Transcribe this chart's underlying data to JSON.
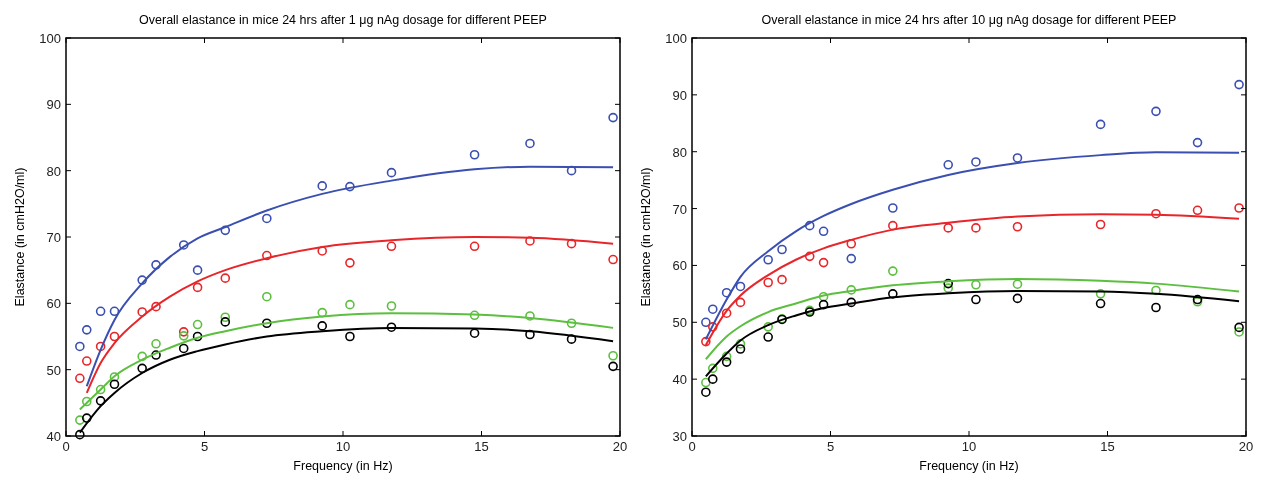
{
  "chart_data": [
    {
      "type": "scatter",
      "title": "Overall elastance in mice 24 hrs after 1 μg nAg dosage for different PEEP",
      "xlabel": "Frequency (in Hz)",
      "ylabel": "Elastance (in cmH2O/ml)",
      "xlim": [
        0,
        20
      ],
      "xticks": [
        0,
        5,
        10,
        15,
        20
      ],
      "ylim": [
        40,
        100
      ],
      "yticks": [
        40,
        50,
        60,
        70,
        80,
        90,
        100
      ],
      "grid": false,
      "series": [
        {
          "marker": "circle",
          "color": "#3a4fb0",
          "x": [
            0.5,
            0.75,
            1.25,
            1.75,
            2.75,
            3.25,
            4.25,
            4.75,
            5.75,
            7.25,
            9.25,
            10.25,
            11.75,
            14.75,
            16.75,
            18.25,
            19.75
          ],
          "values": [
            53.5,
            56,
            58.8,
            58.8,
            63.5,
            65.8,
            68.8,
            65,
            71,
            72.8,
            77.7,
            77.6,
            79.7,
            82.4,
            84.1,
            80,
            88
          ]
        },
        {
          "type": "scatter",
          "marker": "circle",
          "color": "#e8262a",
          "x": [
            0.5,
            0.75,
            1.25,
            1.75,
            2.75,
            3.25,
            4.25,
            4.75,
            5.75,
            7.25,
            9.25,
            10.25,
            11.75,
            14.75,
            16.75,
            18.25,
            19.75
          ],
          "values": [
            48.7,
            51.3,
            53.5,
            55,
            58.7,
            59.5,
            55.7,
            62.4,
            63.8,
            67.2,
            67.9,
            66.1,
            68.6,
            68.6,
            69.4,
            69,
            66.6
          ]
        },
        {
          "type": "scatter",
          "marker": "circle",
          "color": "#5cbf3f",
          "x": [
            0.5,
            0.75,
            1.25,
            1.75,
            2.75,
            3.25,
            4.25,
            4.75,
            5.75,
            7.25,
            9.25,
            10.25,
            11.75,
            14.75,
            16.75,
            18.25,
            19.75
          ],
          "values": [
            42.4,
            45.2,
            47,
            48.9,
            52,
            53.9,
            55.1,
            56.8,
            57.9,
            61,
            58.6,
            59.8,
            59.6,
            58.2,
            58.1,
            57,
            52.1
          ]
        },
        {
          "type": "scatter",
          "marker": "circle",
          "color": "#000000",
          "x": [
            0.5,
            0.75,
            1.25,
            1.75,
            2.75,
            3.25,
            4.25,
            4.75,
            5.75,
            7.25,
            9.25,
            10.25,
            11.75,
            14.75,
            16.75,
            18.25,
            19.75
          ],
          "values": [
            40.2,
            42.7,
            45.3,
            47.8,
            50.2,
            52.2,
            53.2,
            55,
            57.2,
            57,
            56.6,
            55,
            56.4,
            55.5,
            55.3,
            54.6,
            50.5
          ]
        },
        {
          "type": "line",
          "marker": "none",
          "color": "#3a4fb0",
          "x": [
            0.75,
            1.25,
            1.75,
            2.75,
            3.75,
            4.75,
            5.75,
            7.25,
            9.25,
            11.75,
            14.75,
            16.75,
            19.75
          ],
          "values": [
            47.5,
            53,
            57.5,
            63,
            67,
            69.8,
            71.5,
            74,
            76.5,
            78.5,
            80.2,
            80.6,
            80.5
          ]
        },
        {
          "type": "line",
          "marker": "none",
          "color": "#e8262a",
          "x": [
            0.75,
            1.25,
            1.75,
            2.75,
            3.75,
            4.75,
            5.75,
            7.25,
            9.25,
            11.75,
            14.75,
            16.75,
            19.75
          ],
          "values": [
            46.5,
            51,
            54,
            58,
            61,
            63.3,
            65,
            66.8,
            68.5,
            69.5,
            70,
            69.9,
            69
          ]
        },
        {
          "type": "line",
          "marker": "none",
          "color": "#5cbf3f",
          "x": [
            0.5,
            1.25,
            1.75,
            2.75,
            3.75,
            4.75,
            5.75,
            7.25,
            9.25,
            11.75,
            14.75,
            16.75,
            19.75
          ],
          "values": [
            44,
            47,
            49,
            51.5,
            53.3,
            54.8,
            55.8,
            57,
            58,
            58.5,
            58.3,
            57.8,
            56.3
          ]
        },
        {
          "type": "line",
          "marker": "none",
          "color": "#000000",
          "x": [
            0.5,
            1.25,
            1.75,
            2.75,
            3.75,
            4.75,
            5.75,
            7.25,
            9.25,
            11.75,
            14.75,
            16.75,
            19.75
          ],
          "values": [
            40.5,
            44.5,
            46.5,
            49.5,
            51.5,
            52.8,
            53.8,
            55,
            55.8,
            56.3,
            56.2,
            55.8,
            54.3
          ]
        }
      ]
    },
    {
      "type": "scatter",
      "title": "Overall elastance in mice 24 hrs after 10 μg nAg dosage for different PEEP",
      "xlabel": "Frequency (in Hz)",
      "ylabel": "Elastance (in cmH2O/ml)",
      "xlim": [
        0,
        20
      ],
      "xticks": [
        0,
        5,
        10,
        15,
        20
      ],
      "ylim": [
        30,
        100
      ],
      "yticks": [
        30,
        40,
        50,
        60,
        70,
        80,
        90,
        100
      ],
      "grid": false,
      "series": [
        {
          "marker": "circle",
          "color": "#3a4fb0",
          "x": [
            0.5,
            0.75,
            1.25,
            1.75,
            2.75,
            3.25,
            4.25,
            4.75,
            5.75,
            7.25,
            9.25,
            10.25,
            11.75,
            14.75,
            16.75,
            18.25,
            19.75
          ],
          "values": [
            50,
            52.3,
            55.2,
            56.3,
            61,
            62.8,
            67,
            66,
            61.2,
            70.1,
            77.7,
            78.2,
            78.9,
            84.8,
            87.1,
            81.6,
            91.8
          ]
        },
        {
          "type": "scatter",
          "marker": "circle",
          "color": "#e8262a",
          "x": [
            0.5,
            0.75,
            1.25,
            1.75,
            2.75,
            3.25,
            4.25,
            4.75,
            5.75,
            7.25,
            9.25,
            10.25,
            11.75,
            14.75,
            16.75,
            18.25,
            19.75
          ],
          "values": [
            46.6,
            49.2,
            51.6,
            53.5,
            57,
            57.5,
            61.6,
            60.5,
            63.8,
            67,
            66.6,
            66.6,
            66.8,
            67.2,
            69.1,
            69.7,
            70.1
          ]
        },
        {
          "type": "scatter",
          "marker": "circle",
          "color": "#5cbf3f",
          "x": [
            0.5,
            0.75,
            1.25,
            1.75,
            2.75,
            3.25,
            4.25,
            4.75,
            5.75,
            7.25,
            9.25,
            10.25,
            11.75,
            14.75,
            16.75,
            18.25,
            19.75
          ],
          "values": [
            39.4,
            41.9,
            44,
            46.2,
            49.2,
            50.6,
            52.1,
            54.5,
            55.7,
            59,
            56,
            56.6,
            56.7,
            55,
            55.6,
            53.6,
            48.3
          ]
        },
        {
          "type": "scatter",
          "marker": "circle",
          "color": "#000000",
          "x": [
            0.5,
            0.75,
            1.25,
            1.75,
            2.75,
            3.25,
            4.25,
            4.75,
            5.75,
            7.25,
            9.25,
            10.25,
            11.75,
            14.75,
            16.75,
            18.25,
            19.75
          ],
          "values": [
            37.7,
            40,
            43,
            45.3,
            47.4,
            50.5,
            51.8,
            53.1,
            53.5,
            55,
            56.8,
            54,
            54.2,
            53.3,
            52.6,
            54,
            49.1
          ]
        },
        {
          "type": "line",
          "marker": "none",
          "color": "#3a4fb0",
          "x": [
            0.5,
            1.25,
            1.75,
            2.75,
            3.75,
            4.75,
            5.75,
            7.25,
            9.25,
            11.75,
            14.75,
            16.75,
            19.75
          ],
          "values": [
            47,
            54,
            58,
            62.5,
            66,
            68.7,
            70.8,
            73.3,
            75.9,
            78,
            79.4,
            79.9,
            79.8
          ]
        },
        {
          "type": "line",
          "marker": "none",
          "color": "#e8262a",
          "x": [
            0.5,
            1.25,
            1.75,
            2.75,
            3.75,
            4.75,
            5.75,
            7.25,
            9.25,
            11.75,
            14.75,
            16.75,
            19.75
          ],
          "values": [
            46,
            52,
            54.7,
            58.3,
            61,
            63,
            64.5,
            66.3,
            67.5,
            68.6,
            69,
            68.9,
            68.2
          ]
        },
        {
          "type": "line",
          "marker": "none",
          "color": "#5cbf3f",
          "x": [
            0.5,
            1.25,
            1.75,
            2.75,
            3.75,
            4.75,
            5.75,
            7.25,
            9.25,
            11.75,
            14.75,
            16.75,
            19.75
          ],
          "values": [
            43.5,
            47.5,
            49.3,
            51.8,
            53.3,
            54.7,
            55.5,
            56.5,
            57.2,
            57.6,
            57.3,
            56.8,
            55.4
          ]
        },
        {
          "type": "line",
          "marker": "none",
          "color": "#000000",
          "x": [
            0.5,
            1.25,
            1.75,
            2.75,
            3.75,
            4.75,
            5.75,
            7.25,
            9.25,
            11.75,
            14.75,
            16.75,
            19.75
          ],
          "values": [
            40.5,
            44.5,
            46.8,
            49.5,
            51.2,
            52.5,
            53.3,
            54.4,
            55.1,
            55.5,
            55.4,
            55,
            53.7
          ]
        }
      ]
    }
  ]
}
